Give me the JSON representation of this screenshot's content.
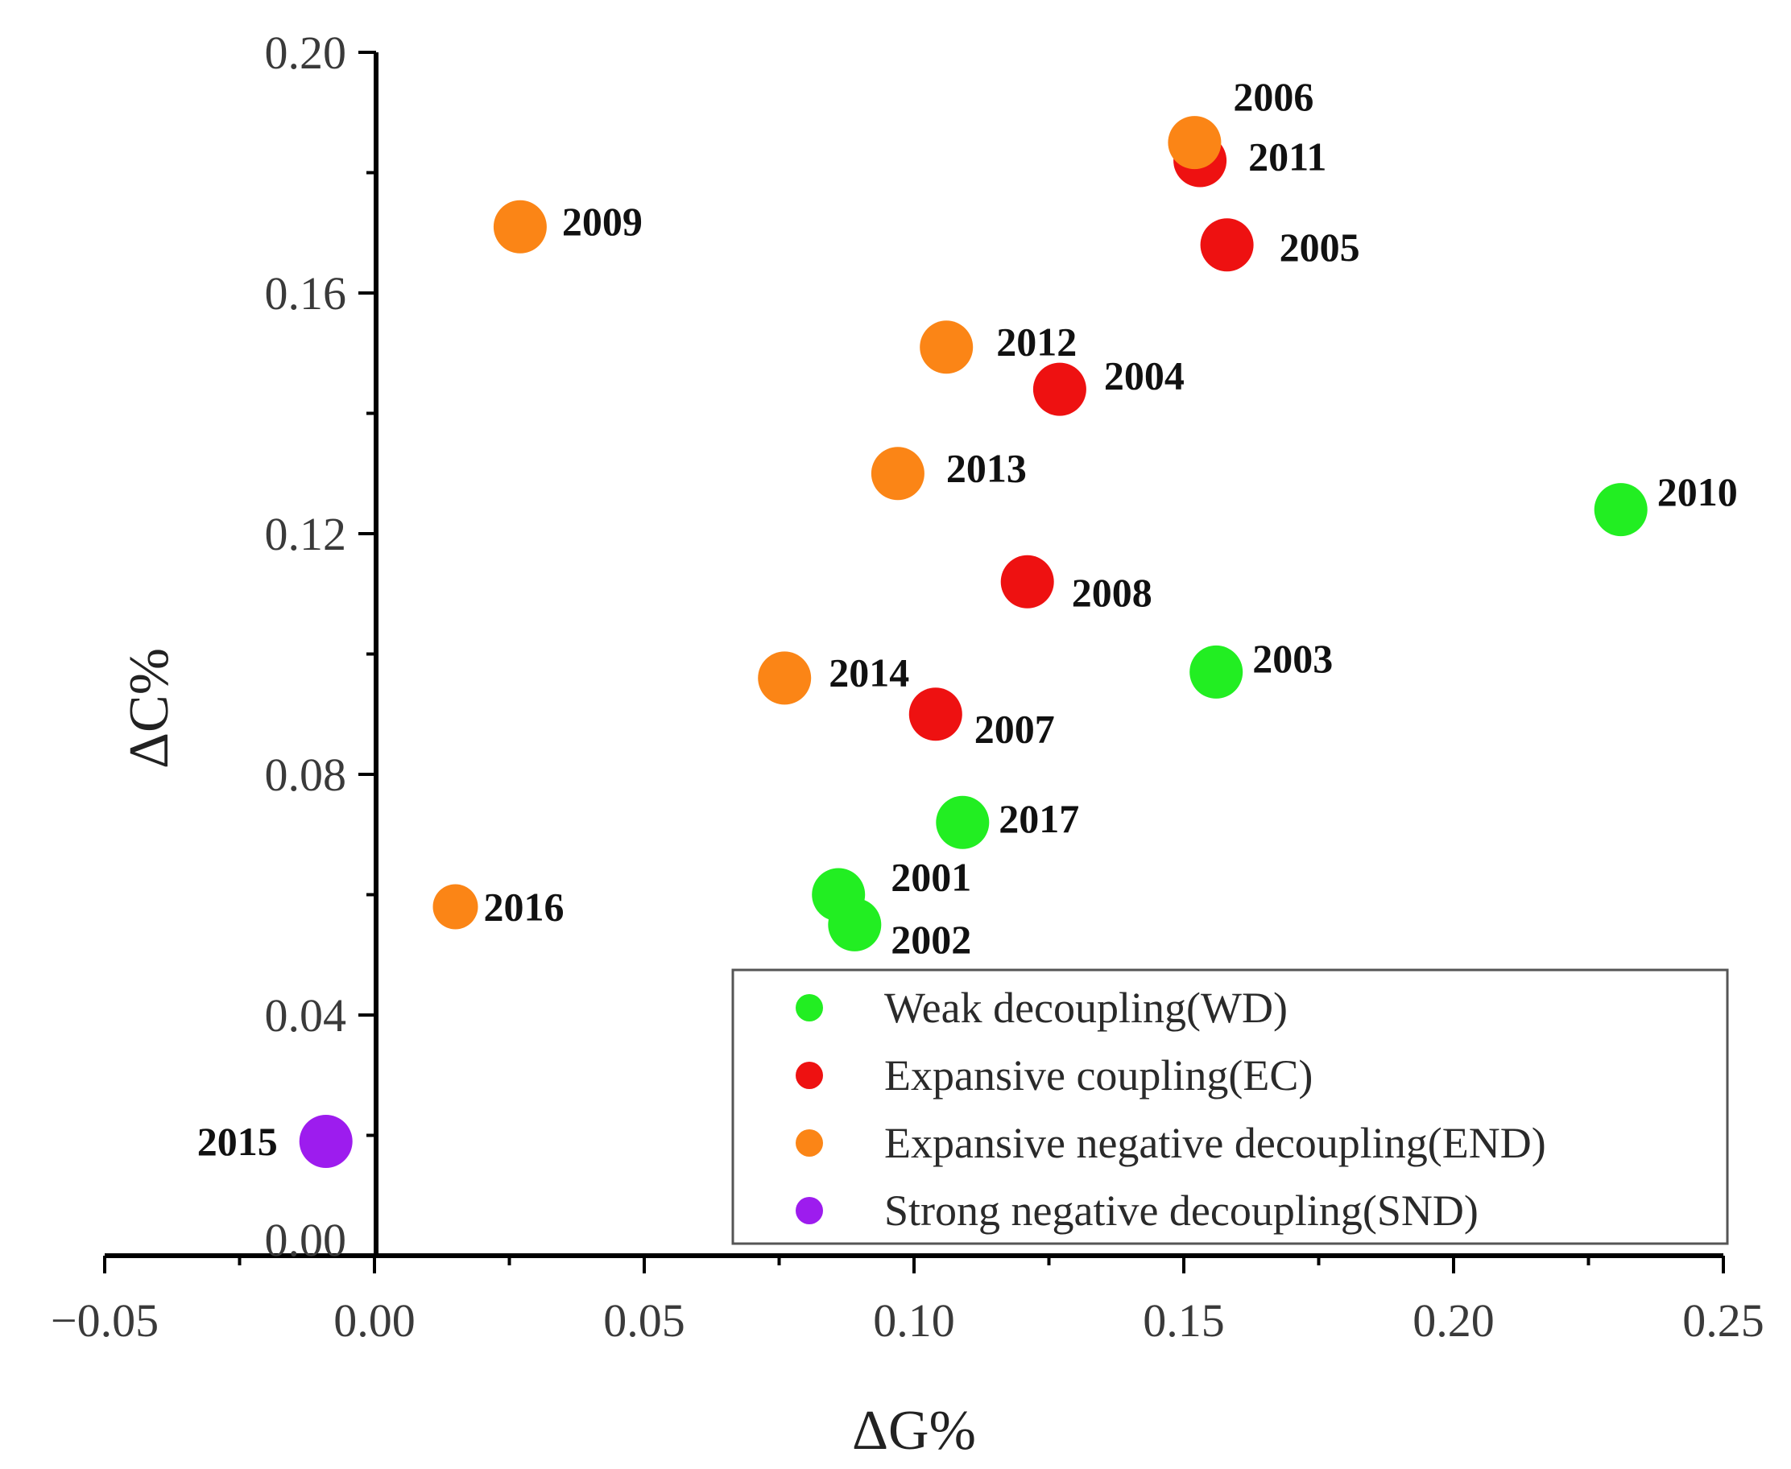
{
  "chart_data": {
    "type": "scatter",
    "title": "",
    "xlabel": "ΔG%",
    "ylabel": "ΔC%",
    "xlim": [
      -0.05,
      0.25
    ],
    "ylim": [
      0.0,
      0.2
    ],
    "x_ticks": [
      "−0.05",
      "0.00",
      "0.05",
      "0.10",
      "0.15",
      "0.20",
      "0.25"
    ],
    "y_ticks": [
      "0.00",
      "0.04",
      "0.08",
      "0.12",
      "0.16",
      "0.20"
    ],
    "grid": false,
    "legend_position": "bottom-right",
    "series": [
      {
        "name": "Weak decoupling(WD)",
        "color": "#22ee22",
        "points": [
          {
            "label": "2001",
            "x": 0.086,
            "y": 0.06
          },
          {
            "label": "2002",
            "x": 0.089,
            "y": 0.055
          },
          {
            "label": "2003",
            "x": 0.156,
            "y": 0.097
          },
          {
            "label": "2010",
            "x": 0.231,
            "y": 0.124
          },
          {
            "label": "2017",
            "x": 0.109,
            "y": 0.072
          }
        ]
      },
      {
        "name": "Expansive coupling(EC)",
        "color": "#ee1111",
        "points": [
          {
            "label": "2004",
            "x": 0.127,
            "y": 0.144
          },
          {
            "label": "2005",
            "x": 0.158,
            "y": 0.168
          },
          {
            "label": "2007",
            "x": 0.104,
            "y": 0.09
          },
          {
            "label": "2008",
            "x": 0.121,
            "y": 0.112
          },
          {
            "label": "2011",
            "x": 0.153,
            "y": 0.182
          }
        ]
      },
      {
        "name": "Expansive negative decoupling(END)",
        "color": "#fb8516",
        "points": [
          {
            "label": "2006",
            "x": 0.152,
            "y": 0.185
          },
          {
            "label": "2009",
            "x": 0.027,
            "y": 0.171
          },
          {
            "label": "2012",
            "x": 0.106,
            "y": 0.151
          },
          {
            "label": "2013",
            "x": 0.097,
            "y": 0.13
          },
          {
            "label": "2014",
            "x": 0.076,
            "y": 0.096
          },
          {
            "label": "2016",
            "x": 0.015,
            "y": 0.058
          }
        ]
      },
      {
        "name": "Strong negative decoupling(SND)",
        "color": "#9d1cee",
        "points": [
          {
            "label": "2015",
            "x": -0.009,
            "y": 0.019
          }
        ]
      }
    ]
  }
}
